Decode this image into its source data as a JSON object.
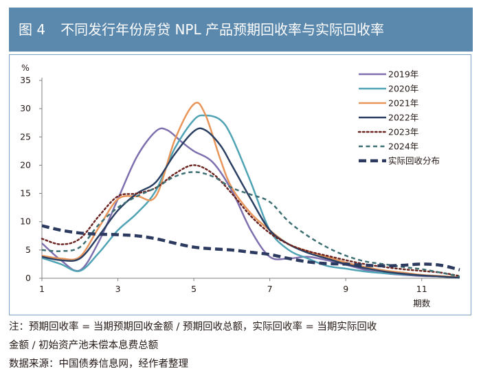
{
  "figure": {
    "label": "图 4",
    "title": "不同发行年份房贷 NPL 产品预期回收率与实际回收率"
  },
  "chart_data": {
    "type": "line",
    "unit_label": "%",
    "xlabel": "期数",
    "x_ticks": [
      1,
      3,
      5,
      7,
      9,
      11
    ],
    "xlim": [
      1,
      12
    ],
    "y_ticks": [
      0,
      5,
      10,
      15,
      20,
      25,
      30,
      35
    ],
    "ylim": [
      0,
      35
    ],
    "legend_position": "top-right",
    "series": [
      {
        "name": "2019年",
        "color": "#7e6fae",
        "dash": "solid",
        "width": 2.5,
        "points": [
          [
            1,
            6.2
          ],
          [
            1.5,
            3.2
          ],
          [
            2,
            1.4
          ],
          [
            2.5,
            6.5
          ],
          [
            3,
            14.0
          ],
          [
            3.5,
            21.5
          ],
          [
            4,
            26.0
          ],
          [
            4.3,
            26.2
          ],
          [
            4.7,
            24.0
          ],
          [
            5,
            22.5
          ],
          [
            5.5,
            20.5
          ],
          [
            6,
            15.5
          ],
          [
            6.5,
            8.5
          ],
          [
            7,
            3.8
          ],
          [
            7.5,
            3.5
          ],
          [
            8,
            3.8
          ],
          [
            8.5,
            3.2
          ],
          [
            9,
            2.4
          ],
          [
            9.5,
            1.5
          ],
          [
            10,
            0.9
          ],
          [
            10.5,
            0.6
          ],
          [
            11,
            0.4
          ],
          [
            11.5,
            0.3
          ],
          [
            12,
            0.1
          ]
        ]
      },
      {
        "name": "2020年",
        "color": "#4fa3b4",
        "dash": "solid",
        "width": 2.5,
        "points": [
          [
            1,
            3.6
          ],
          [
            1.5,
            2.5
          ],
          [
            2,
            1.3
          ],
          [
            2.5,
            4.5
          ],
          [
            3,
            8.5
          ],
          [
            3.5,
            11.5
          ],
          [
            4,
            15.5
          ],
          [
            4.5,
            23.0
          ],
          [
            5,
            28.0
          ],
          [
            5.3,
            28.8
          ],
          [
            5.7,
            28.0
          ],
          [
            6,
            25.0
          ],
          [
            6.5,
            17.0
          ],
          [
            7,
            8.5
          ],
          [
            7.5,
            5.0
          ],
          [
            8,
            3.5
          ],
          [
            8.5,
            2.2
          ],
          [
            9,
            1.7
          ],
          [
            9.5,
            1.2
          ],
          [
            10,
            0.9
          ],
          [
            10.5,
            0.7
          ],
          [
            11,
            0.5
          ],
          [
            11.5,
            0.3
          ],
          [
            12,
            0.1
          ]
        ]
      },
      {
        "name": "2021年",
        "color": "#e8955a",
        "dash": "solid",
        "width": 2.5,
        "points": [
          [
            1,
            4.0
          ],
          [
            1.5,
            3.5
          ],
          [
            2,
            3.8
          ],
          [
            2.5,
            9.0
          ],
          [
            3,
            14.0
          ],
          [
            3.5,
            14.5
          ],
          [
            4,
            14.5
          ],
          [
            4.5,
            24.5
          ],
          [
            5,
            30.8
          ],
          [
            5.3,
            29.0
          ],
          [
            5.7,
            21.0
          ],
          [
            6,
            16.0
          ],
          [
            6.5,
            11.5
          ],
          [
            7,
            8.5
          ],
          [
            7.5,
            6.0
          ],
          [
            8,
            4.8
          ],
          [
            8.5,
            3.8
          ],
          [
            9,
            2.8
          ],
          [
            9.5,
            2.0
          ],
          [
            10,
            1.4
          ],
          [
            10.5,
            1.0
          ],
          [
            11,
            0.6
          ],
          [
            11.5,
            0.4
          ],
          [
            12,
            0.2
          ]
        ]
      },
      {
        "name": "2022年",
        "color": "#2b3f63",
        "dash": "solid",
        "width": 2.5,
        "points": [
          [
            1,
            3.8
          ],
          [
            1.5,
            3.2
          ],
          [
            2,
            3.5
          ],
          [
            2.5,
            7.5
          ],
          [
            3,
            12.0
          ],
          [
            3.5,
            15.0
          ],
          [
            4,
            17.0
          ],
          [
            4.5,
            22.0
          ],
          [
            5,
            26.0
          ],
          [
            5.3,
            26.2
          ],
          [
            5.7,
            23.5
          ],
          [
            6,
            20.0
          ],
          [
            6.5,
            14.0
          ],
          [
            7,
            8.5
          ],
          [
            7.5,
            6.0
          ],
          [
            8,
            4.5
          ],
          [
            8.5,
            3.5
          ],
          [
            9,
            2.5
          ],
          [
            9.5,
            1.8
          ],
          [
            10,
            1.2
          ],
          [
            10.5,
            0.8
          ],
          [
            11,
            0.5
          ],
          [
            11.5,
            0.3
          ],
          [
            12,
            0.1
          ]
        ]
      },
      {
        "name": "2023年",
        "color": "#6b2320",
        "dash": "dot",
        "width": 2.5,
        "points": [
          [
            1,
            7.0
          ],
          [
            1.5,
            6.0
          ],
          [
            2,
            7.0
          ],
          [
            2.5,
            11.0
          ],
          [
            3,
            14.5
          ],
          [
            3.5,
            15.0
          ],
          [
            4,
            16.0
          ],
          [
            4.5,
            18.5
          ],
          [
            5,
            20.0
          ],
          [
            5.5,
            18.5
          ],
          [
            6,
            15.0
          ],
          [
            6.5,
            11.0
          ],
          [
            7,
            8.0
          ],
          [
            7.5,
            6.0
          ],
          [
            8,
            4.8
          ],
          [
            8.5,
            4.0
          ],
          [
            9,
            3.2
          ],
          [
            9.5,
            2.5
          ],
          [
            10,
            2.0
          ],
          [
            10.5,
            1.6
          ],
          [
            11,
            1.3
          ],
          [
            11.5,
            1.0
          ],
          [
            12,
            0.4
          ]
        ]
      },
      {
        "name": "2024年",
        "color": "#3d6f72",
        "dash": "dash",
        "width": 2.5,
        "points": [
          [
            1,
            5.0
          ],
          [
            1.5,
            4.8
          ],
          [
            2,
            5.5
          ],
          [
            2.5,
            9.5
          ],
          [
            3,
            12.5
          ],
          [
            3.5,
            14.5
          ],
          [
            4,
            16.0
          ],
          [
            4.5,
            18.0
          ],
          [
            5,
            18.8
          ],
          [
            5.5,
            18.0
          ],
          [
            6,
            16.0
          ],
          [
            6.5,
            14.8
          ],
          [
            7,
            13.5
          ],
          [
            7.5,
            10.0
          ],
          [
            8,
            7.5
          ],
          [
            8.5,
            5.5
          ],
          [
            9,
            4.0
          ],
          [
            9.5,
            3.0
          ],
          [
            10,
            2.5
          ],
          [
            10.5,
            2.0
          ],
          [
            11,
            1.6
          ],
          [
            11.5,
            1.0
          ],
          [
            12,
            0.3
          ]
        ]
      },
      {
        "name": "实际回收分布",
        "color": "#2b3a5e",
        "dash": "longdash",
        "width": 4.5,
        "points": [
          [
            1,
            9.3
          ],
          [
            1.5,
            8.5
          ],
          [
            2,
            8.0
          ],
          [
            2.5,
            7.8
          ],
          [
            3,
            7.7
          ],
          [
            3.5,
            7.5
          ],
          [
            4,
            7.0
          ],
          [
            4.5,
            6.2
          ],
          [
            5,
            5.5
          ],
          [
            5.5,
            5.2
          ],
          [
            6,
            5.0
          ],
          [
            6.5,
            4.6
          ],
          [
            7,
            4.2
          ],
          [
            7.5,
            3.5
          ],
          [
            8,
            2.9
          ],
          [
            8.5,
            2.6
          ],
          [
            9,
            2.5
          ],
          [
            9.5,
            2.3
          ],
          [
            10,
            2.2
          ],
          [
            10.5,
            2.3
          ],
          [
            11,
            2.5
          ],
          [
            11.5,
            2.3
          ],
          [
            12,
            1.5
          ]
        ]
      }
    ]
  },
  "notes": {
    "line1": "注：预期回收率 = 当期预期回收金额 / 预期回收总额，实际回收率 = 当期实际回收",
    "line2": "金额 / 初始资产池未偿本息费总额",
    "source": "数据来源：中国债券信息网，经作者整理"
  }
}
